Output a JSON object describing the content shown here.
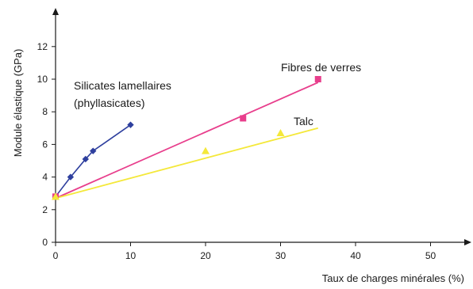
{
  "chart_data": {
    "type": "line",
    "title": "",
    "xlabel": "Taux de charges minérales (%)",
    "ylabel": "Module élastique (GPa)",
    "xlim": [
      0,
      55
    ],
    "ylim": [
      0,
      14.5
    ],
    "xticks": [
      0,
      10,
      20,
      30,
      40,
      50
    ],
    "yticks": [
      0,
      2,
      4,
      6,
      8,
      10,
      12
    ],
    "grid": false,
    "series": [
      {
        "name": "Silicates lamellaires (phyllasicates)",
        "color": "#2e3f9e",
        "marker": "diamond",
        "x": [
          0,
          2,
          4,
          5,
          10
        ],
        "y": [
          2.8,
          4.0,
          5.1,
          5.6,
          7.2
        ]
      },
      {
        "name": "Fibres de verres",
        "color": "#e83e8c",
        "marker": "square",
        "x": [
          0,
          25,
          35
        ],
        "y": [
          2.8,
          7.6,
          10.0
        ]
      },
      {
        "name": "Talc",
        "color": "#f4e83a",
        "marker": "triangle",
        "x": [
          0,
          20,
          30
        ],
        "y": [
          2.8,
          5.6,
          6.7
        ]
      }
    ],
    "trendlines": [
      {
        "series": "Fibres de verres",
        "color": "#e83e8c",
        "x": [
          0,
          35
        ],
        "y": [
          2.7,
          9.8
        ]
      },
      {
        "series": "Talc",
        "color": "#f4e83a",
        "x": [
          0,
          35
        ],
        "y": [
          2.7,
          7.0
        ]
      }
    ],
    "annotations": [
      {
        "text": "Silicates lamellaires",
        "series": "Silicates lamellaires (phyllasicates)"
      },
      {
        "text": "(phyllasicates)",
        "series": "Silicates lamellaires (phyllasicates)"
      },
      {
        "text": "Fibres de verres",
        "series": "Fibres de verres"
      },
      {
        "text": "Talc",
        "series": "Talc"
      }
    ]
  }
}
